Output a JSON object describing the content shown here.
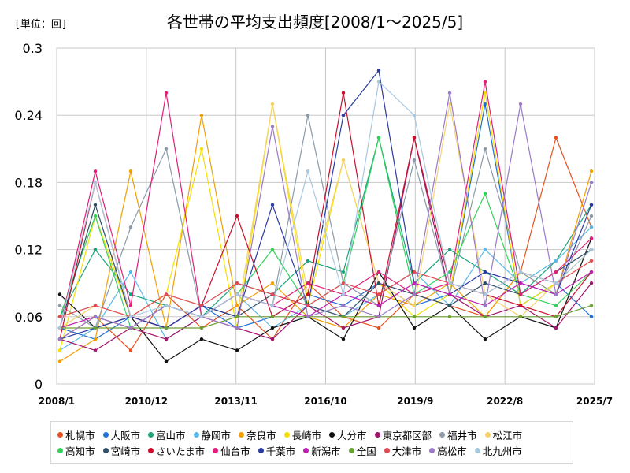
{
  "header": {
    "unit": "[単位：回]",
    "title": "各世帯の平均支出頻度[2008/1～2025/5]"
  },
  "chart_data": {
    "type": "line",
    "title": "各世帯の平均支出頻度[2008/1～2025/5]",
    "unit": "[単位：回]",
    "ylim": [
      0,
      0.3
    ],
    "yticks": [
      "0",
      "0.06",
      "0.12",
      "0.18",
      "0.24",
      "0.3"
    ],
    "xlim": [
      "2008/1",
      "2025/7"
    ],
    "xticks": [
      "2008/1",
      "2010/12",
      "2013/11",
      "2016/10",
      "2019/9",
      "2022/8",
      "2025/7"
    ],
    "grid": true,
    "legend_position": "bottom",
    "series": [
      {
        "name": "札幌市",
        "color": "#e8501e",
        "values": [
          0.04,
          0.06,
          0.03,
          0.08,
          0.05,
          0.07,
          0.04,
          0.09,
          0.06,
          0.05,
          0.08,
          0.07,
          0.06,
          0.1,
          0.22,
          0.14
        ]
      },
      {
        "name": "大阪市",
        "color": "#1f6fd6",
        "values": [
          0.05,
          0.04,
          0.06,
          0.05,
          0.07,
          0.05,
          0.06,
          0.08,
          0.07,
          0.09,
          0.07,
          0.08,
          0.25,
          0.07,
          0.09,
          0.06
        ]
      },
      {
        "name": "富山市",
        "color": "#1aa37a",
        "values": [
          0.06,
          0.12,
          0.08,
          0.07,
          0.06,
          0.09,
          0.08,
          0.11,
          0.1,
          0.22,
          0.09,
          0.12,
          0.1,
          0.08,
          0.11,
          0.16
        ]
      },
      {
        "name": "静岡市",
        "color": "#5ab8ea",
        "values": [
          0.03,
          0.05,
          0.1,
          0.04,
          0.06,
          0.08,
          0.05,
          0.07,
          0.06,
          0.08,
          0.1,
          0.07,
          0.12,
          0.09,
          0.11,
          0.14
        ]
      },
      {
        "name": "奈良市",
        "color": "#f0a000",
        "values": [
          0.02,
          0.04,
          0.19,
          0.05,
          0.24,
          0.07,
          0.09,
          0.06,
          0.05,
          0.08,
          0.07,
          0.09,
          0.06,
          0.1,
          0.08,
          0.19
        ]
      },
      {
        "name": "長崎市",
        "color": "#f5e000",
        "values": [
          0.03,
          0.15,
          0.06,
          0.08,
          0.21,
          0.05,
          0.25,
          0.07,
          0.2,
          0.09,
          0.06,
          0.08,
          0.26,
          0.07,
          0.09,
          0.12
        ]
      },
      {
        "name": "大分市",
        "color": "#111111",
        "values": [
          0.08,
          0.05,
          0.06,
          0.02,
          0.04,
          0.03,
          0.05,
          0.06,
          0.04,
          0.1,
          0.05,
          0.07,
          0.04,
          0.06,
          0.05,
          0.13
        ]
      },
      {
        "name": "東京都区部",
        "color": "#a0146e",
        "values": [
          0.04,
          0.03,
          0.05,
          0.04,
          0.06,
          0.05,
          0.04,
          0.07,
          0.05,
          0.06,
          0.22,
          0.08,
          0.06,
          0.07,
          0.05,
          0.09
        ]
      },
      {
        "name": "福井市",
        "color": "#8a9aa8",
        "values": [
          0.07,
          0.05,
          0.14,
          0.21,
          0.06,
          0.08,
          0.07,
          0.24,
          0.09,
          0.07,
          0.2,
          0.08,
          0.21,
          0.1,
          0.08,
          0.15
        ]
      },
      {
        "name": "松江市",
        "color": "#f5d36a",
        "values": [
          0.05,
          0.07,
          0.06,
          0.08,
          0.07,
          0.06,
          0.25,
          0.08,
          0.2,
          0.09,
          0.07,
          0.25,
          0.08,
          0.06,
          0.09,
          0.11
        ]
      },
      {
        "name": "高知市",
        "color": "#2fd35a",
        "values": [
          0.06,
          0.15,
          0.05,
          0.07,
          0.06,
          0.08,
          0.12,
          0.07,
          0.09,
          0.22,
          0.08,
          0.1,
          0.17,
          0.08,
          0.07,
          0.1
        ]
      },
      {
        "name": "宮崎市",
        "color": "#2f4f66",
        "values": [
          0.05,
          0.16,
          0.06,
          0.05,
          0.07,
          0.06,
          0.08,
          0.07,
          0.06,
          0.09,
          0.08,
          0.07,
          0.09,
          0.08,
          0.1,
          0.12
        ]
      },
      {
        "name": "さいたま市",
        "color": "#c8102e",
        "values": [
          0.04,
          0.18,
          0.06,
          0.05,
          0.07,
          0.15,
          0.06,
          0.08,
          0.26,
          0.07,
          0.22,
          0.09,
          0.08,
          0.07,
          0.06,
          0.1
        ]
      },
      {
        "name": "仙台市",
        "color": "#e0207a",
        "values": [
          0.05,
          0.19,
          0.07,
          0.26,
          0.06,
          0.08,
          0.07,
          0.09,
          0.08,
          0.1,
          0.08,
          0.09,
          0.27,
          0.08,
          0.1,
          0.13
        ]
      },
      {
        "name": "千葉市",
        "color": "#2a3aa0",
        "values": [
          0.04,
          0.05,
          0.06,
          0.05,
          0.07,
          0.06,
          0.16,
          0.07,
          0.24,
          0.28,
          0.09,
          0.08,
          0.1,
          0.09,
          0.08,
          0.16
        ]
      },
      {
        "name": "新潟市",
        "color": "#c020b0",
        "values": [
          0.05,
          0.06,
          0.05,
          0.07,
          0.06,
          0.08,
          0.07,
          0.06,
          0.08,
          0.07,
          0.09,
          0.08,
          0.07,
          0.09,
          0.08,
          0.1
        ]
      },
      {
        "name": "全国",
        "color": "#6aa035",
        "values": [
          0.05,
          0.05,
          0.05,
          0.05,
          0.05,
          0.06,
          0.06,
          0.06,
          0.06,
          0.06,
          0.06,
          0.06,
          0.06,
          0.06,
          0.06,
          0.07
        ]
      },
      {
        "name": "大津市",
        "color": "#e04a55",
        "values": [
          0.06,
          0.07,
          0.06,
          0.08,
          0.07,
          0.09,
          0.08,
          0.07,
          0.09,
          0.08,
          0.1,
          0.09,
          0.08,
          0.1,
          0.09,
          0.11
        ]
      },
      {
        "name": "高松市",
        "color": "#9a7ac8",
        "values": [
          0.04,
          0.06,
          0.05,
          0.07,
          0.06,
          0.05,
          0.23,
          0.06,
          0.07,
          0.06,
          0.08,
          0.26,
          0.07,
          0.25,
          0.08,
          0.18
        ]
      },
      {
        "name": "北九州市",
        "color": "#a8c8e0",
        "values": [
          0.05,
          0.18,
          0.06,
          0.07,
          0.06,
          0.08,
          0.07,
          0.19,
          0.08,
          0.27,
          0.24,
          0.09,
          0.08,
          0.1,
          0.09,
          0.12
        ]
      }
    ]
  }
}
